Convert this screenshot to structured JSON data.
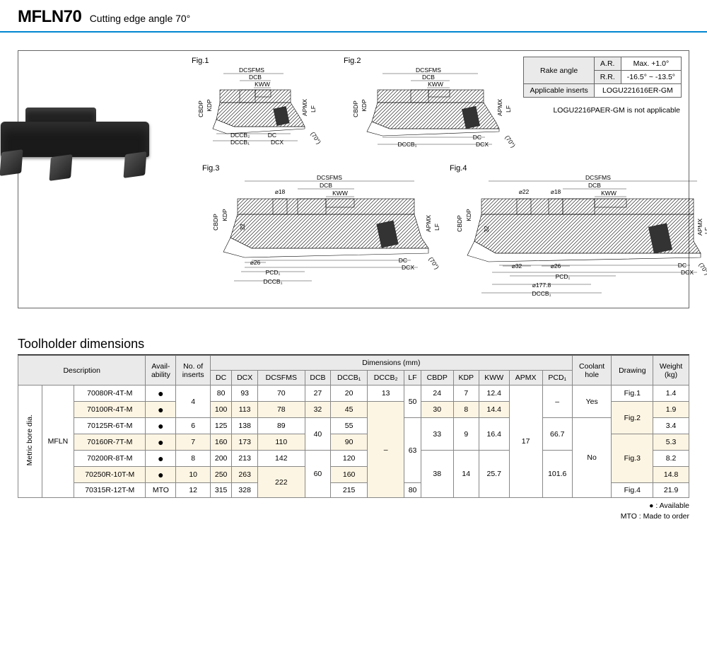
{
  "header": {
    "title": "MFLN70",
    "subtitle": "Cutting edge angle 70°"
  },
  "figures": {
    "fig1": "Fig.1",
    "fig2": "Fig.2",
    "fig3": "Fig.3",
    "fig4": "Fig.4",
    "dim_labels": {
      "DCSFMS": "DCSFMS",
      "DCB": "DCB",
      "KWW": "KWW",
      "KDP": "KDP",
      "CBDP": "CBDP",
      "APMX": "APMX",
      "LF": "LF",
      "DC": "DC",
      "DCX": "DCX",
      "DCCB1": "DCCB₁",
      "DCCB2": "DCCB₂",
      "PCD1": "PCD₁",
      "d18": "⌀18",
      "d22": "⌀22",
      "d26": "⌀26",
      "d32": "⌀32",
      "n32": "32",
      "d177": "⌀177.8",
      "angle": "(70°)"
    }
  },
  "info_table": {
    "rake_label": "Rake angle",
    "ar_label": "A.R.",
    "ar_val": "Max. +1.0°",
    "rr_label": "R.R.",
    "rr_val": "-16.5° ~ -13.5°",
    "inserts_label": "Applicable inserts",
    "inserts_val": "LOGU221616ER-GM",
    "note": "LOGU2216PAER-GM is not applicable"
  },
  "dim_section": {
    "title": "Toolholder dimensions",
    "group_label": "Metric bore dia.",
    "series": "MFLN",
    "headers": {
      "description": "Description",
      "availability": "Avail-\nability",
      "inserts": "No. of\ninserts",
      "dimensions": "Dimensions (mm)",
      "coolant": "Coolant\nhole",
      "drawing": "Drawing",
      "weight": "Weight\n(kg)",
      "cols": [
        "DC",
        "DCX",
        "DCSFMS",
        "DCB",
        "DCCB₁",
        "DCCB₂",
        "LF",
        "CBDP",
        "KDP",
        "KWW",
        "APMX",
        "PCD₁"
      ]
    },
    "rows": [
      {
        "code": "70080R-4T-M",
        "avail": "●",
        "n": "4",
        "DC": "80",
        "DCX": "93",
        "DCSFMS": "70",
        "DCB": "27",
        "DCCB1": "20",
        "DCCB2": "13",
        "LF": "50",
        "CBDP": "24",
        "KDP": "7",
        "KWW": "12.4",
        "APMX": "17",
        "PCD": "–",
        "cool": "Yes",
        "fig": "Fig.1",
        "wt": "1.4",
        "alt": false
      },
      {
        "code": "70100R-4T-M",
        "avail": "●",
        "n": "",
        "DC": "100",
        "DCX": "113",
        "DCSFMS": "78",
        "DCB": "32",
        "DCCB1": "45",
        "DCCB2": "–",
        "LF": "",
        "CBDP": "30",
        "KDP": "8",
        "KWW": "14.4",
        "APMX": "",
        "PCD": "",
        "cool": "",
        "fig": "Fig.2",
        "wt": "1.9",
        "alt": true
      },
      {
        "code": "70125R-6T-M",
        "avail": "●",
        "n": "6",
        "DC": "125",
        "DCX": "138",
        "DCSFMS": "89",
        "DCB": "40",
        "DCCB1": "55",
        "DCCB2": "",
        "LF": "63",
        "CBDP": "33",
        "KDP": "9",
        "KWW": "16.4",
        "APMX": "",
        "PCD": "66.7",
        "cool": "No",
        "fig": "",
        "wt": "3.4",
        "alt": false
      },
      {
        "code": "70160R-7T-M",
        "avail": "●",
        "n": "7",
        "DC": "160",
        "DCX": "173",
        "DCSFMS": "110",
        "DCB": "",
        "DCCB1": "90",
        "DCCB2": "",
        "LF": "",
        "CBDP": "",
        "KDP": "",
        "KWW": "",
        "APMX": "",
        "PCD": "",
        "cool": "",
        "fig": "Fig.3",
        "wt": "5.3",
        "alt": true
      },
      {
        "code": "70200R-8T-M",
        "avail": "●",
        "n": "8",
        "DC": "200",
        "DCX": "213",
        "DCSFMS": "142",
        "DCB": "60",
        "DCCB1": "120",
        "DCCB2": "",
        "LF": "",
        "CBDP": "38",
        "KDP": "14",
        "KWW": "25.7",
        "APMX": "",
        "PCD": "101.6",
        "cool": "",
        "fig": "",
        "wt": "8.2",
        "alt": false
      },
      {
        "code": "70250R-10T-M",
        "avail": "●",
        "n": "10",
        "DC": "250",
        "DCX": "263",
        "DCSFMS": "222",
        "DCB": "",
        "DCCB1": "160",
        "DCCB2": "",
        "LF": "",
        "CBDP": "",
        "KDP": "",
        "KWW": "",
        "APMX": "",
        "PCD": "",
        "cool": "",
        "fig": "",
        "wt": "14.8",
        "alt": true
      },
      {
        "code": "70315R-12T-M",
        "avail": "MTO",
        "n": "12",
        "DC": "315",
        "DCX": "328",
        "DCSFMS": "",
        "DCB": "",
        "DCCB1": "215",
        "DCCB2": "",
        "LF": "80",
        "CBDP": "",
        "KDP": "",
        "KWW": "",
        "APMX": "",
        "PCD": "",
        "cool": "",
        "fig": "Fig.4",
        "wt": "21.9",
        "alt": false
      }
    ]
  },
  "legend": {
    "l1": "● : Available",
    "l2": "MTO : Made to order"
  }
}
